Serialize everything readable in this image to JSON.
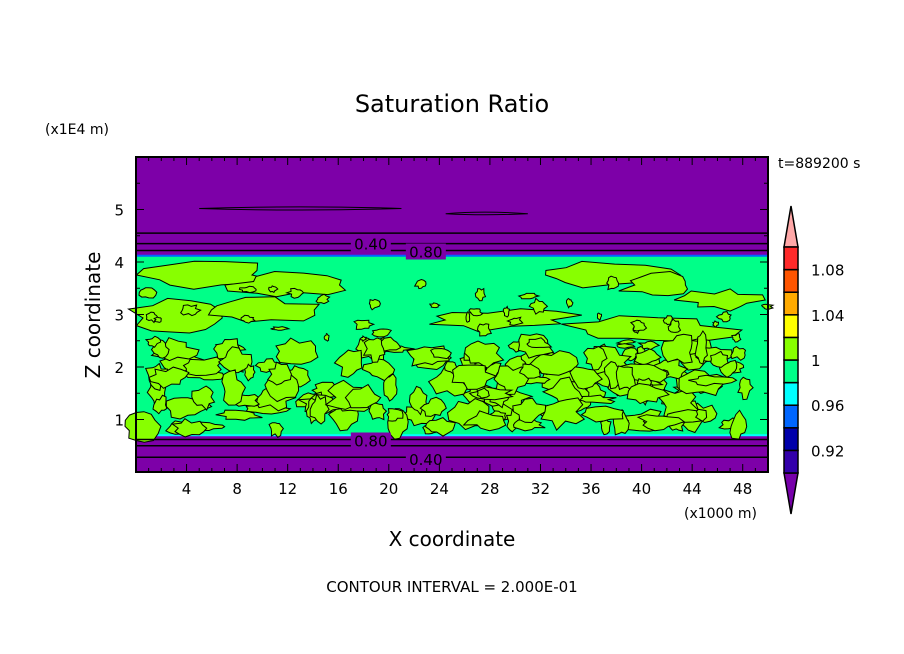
{
  "chart_data": {
    "type": "heatmap",
    "title": "Saturation Ratio",
    "xlabel": "X coordinate",
    "ylabel": "Z coordinate",
    "x_unit_label": "(x1000 m)",
    "y_unit_label": "(x1E4 m)",
    "time_label": "t=889200 s",
    "footer": "CONTOUR INTERVAL = 2.000E-01",
    "xlim": [
      0,
      50
    ],
    "ylim": [
      0,
      6
    ],
    "x_ticks": [
      4,
      8,
      12,
      16,
      20,
      24,
      28,
      32,
      36,
      40,
      44,
      48
    ],
    "y_ticks": [
      1,
      2,
      3,
      4,
      5
    ],
    "cloud_layer": {
      "z_bottom": 0.7,
      "z_top": 4.1,
      "value_range": [
        0.98,
        1.02
      ]
    },
    "contour_labels": [
      {
        "text": "0.40",
        "x": 18.5,
        "z": 4.35
      },
      {
        "text": "0.80",
        "x": 18.5,
        "z": 4.2
      },
      {
        "text": "0.80",
        "x": 18.5,
        "z": 0.6
      },
      {
        "text": "0.40",
        "x": 18.5,
        "z": 0.25
      }
    ],
    "colorbar": {
      "levels": [
        0.9,
        0.92,
        0.94,
        0.96,
        0.98,
        1.0,
        1.02,
        1.04,
        1.06,
        1.08,
        1.1
      ],
      "tick_labels": [
        "0.92",
        "0.96",
        "1",
        "1.04",
        "1.08"
      ],
      "tick_values": [
        0.92,
        0.96,
        1.0,
        1.04,
        1.08
      ],
      "colors": [
        "#3300aa",
        "#0000aa",
        "#0066ff",
        "#00ffff",
        "#00ff88",
        "#88ff00",
        "#ffff00",
        "#ffaa00",
        "#ff5500",
        "#ff2a2a"
      ],
      "under_color": "#7700aa",
      "over_color": "#ffa8a8"
    }
  }
}
